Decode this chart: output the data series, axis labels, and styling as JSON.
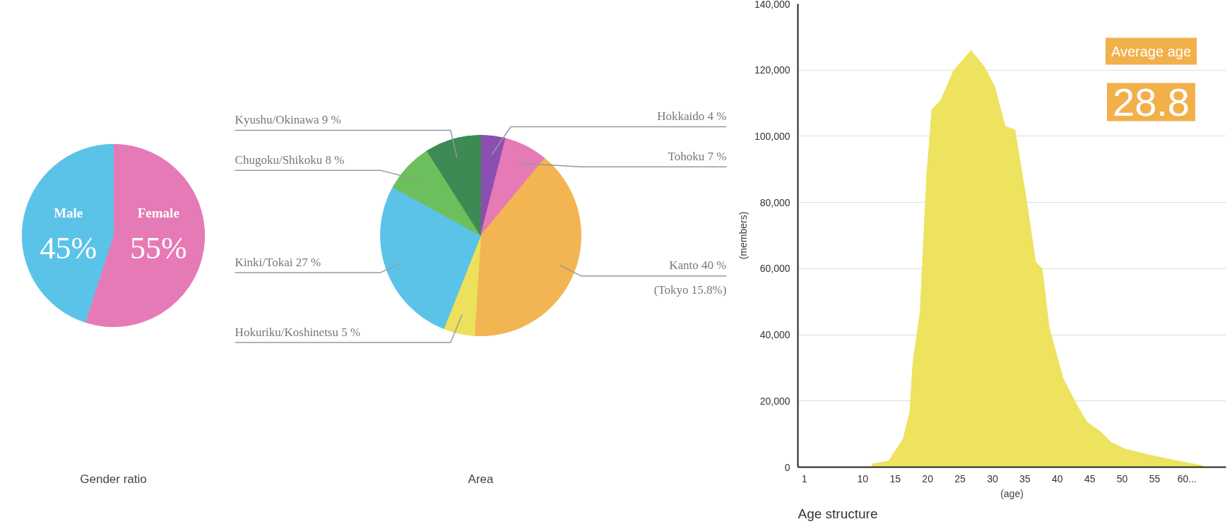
{
  "chart_data": [
    {
      "type": "pie",
      "title": "Gender ratio",
      "categories": [
        "Female",
        "Male"
      ],
      "values": [
        55,
        45
      ],
      "colors": [
        "#e67ab6",
        "#5cc3e8"
      ],
      "value_labels": [
        "55%",
        "45%"
      ]
    },
    {
      "type": "pie",
      "title": "Area",
      "categories": [
        "Hokkaido",
        "Tohoku",
        "Kanto",
        "Hokuriku/Koshinetsu",
        "Kinki/Tokai",
        "Chugoku/Shikoku",
        "Kyushu/Okinawa"
      ],
      "values": [
        4,
        7,
        40,
        5,
        27,
        8,
        9
      ],
      "colors": [
        "#8a4fb0",
        "#e67ab6",
        "#f2b552",
        "#ece15a",
        "#5cc3e8",
        "#6cbf5c",
        "#3e8a55"
      ],
      "value_labels": [
        "4 %",
        "7 %",
        "40 %",
        "5 %",
        "27 %",
        "8 %",
        "9 %"
      ],
      "annotations": [
        "(Tokyo 15.8%)"
      ]
    },
    {
      "type": "area",
      "title": "Age structure",
      "xlabel": "(age)",
      "ylabel": "(members)",
      "color": "#ede35e",
      "x": [
        11.4,
        14,
        16.2,
        17.2,
        17.7,
        18.8,
        19.8,
        20.6,
        22,
        24,
        26.7,
        28.8,
        30.4,
        32,
        33.5,
        35.1,
        36.7,
        37.7,
        38.8,
        40.9,
        43,
        44.6,
        46.7,
        48.3,
        50.4,
        54.6,
        59.3,
        62.5
      ],
      "values": [
        1000,
        2000,
        8600,
        16700,
        32000,
        47000,
        88000,
        108000,
        111000,
        120000,
        126000,
        121000,
        115000,
        103000,
        102000,
        83000,
        62000,
        60000,
        42000,
        27000,
        19000,
        13700,
        10700,
        7600,
        5600,
        3600,
        1700,
        500
      ],
      "xlim": [
        0,
        66
      ],
      "xticks": [
        1,
        10,
        15,
        20,
        25,
        30,
        35,
        40,
        45,
        50,
        55,
        {
          "value": 60,
          "label": "60..."
        }
      ],
      "ylim": [
        0,
        140000
      ],
      "yticks": [
        0,
        {
          "value": 20000,
          "label": "20,000"
        },
        {
          "value": 40000,
          "label": "40,000"
        },
        {
          "value": 60000,
          "label": "60,000"
        },
        {
          "value": 80000,
          "label": "80,000"
        },
        {
          "value": 100000,
          "label": "100,000"
        },
        {
          "value": 120000,
          "label": "120,000"
        },
        {
          "value": 140000,
          "label": "140,000"
        }
      ],
      "grid": "y",
      "annotations": [
        "Average age",
        "28.8"
      ]
    }
  ]
}
